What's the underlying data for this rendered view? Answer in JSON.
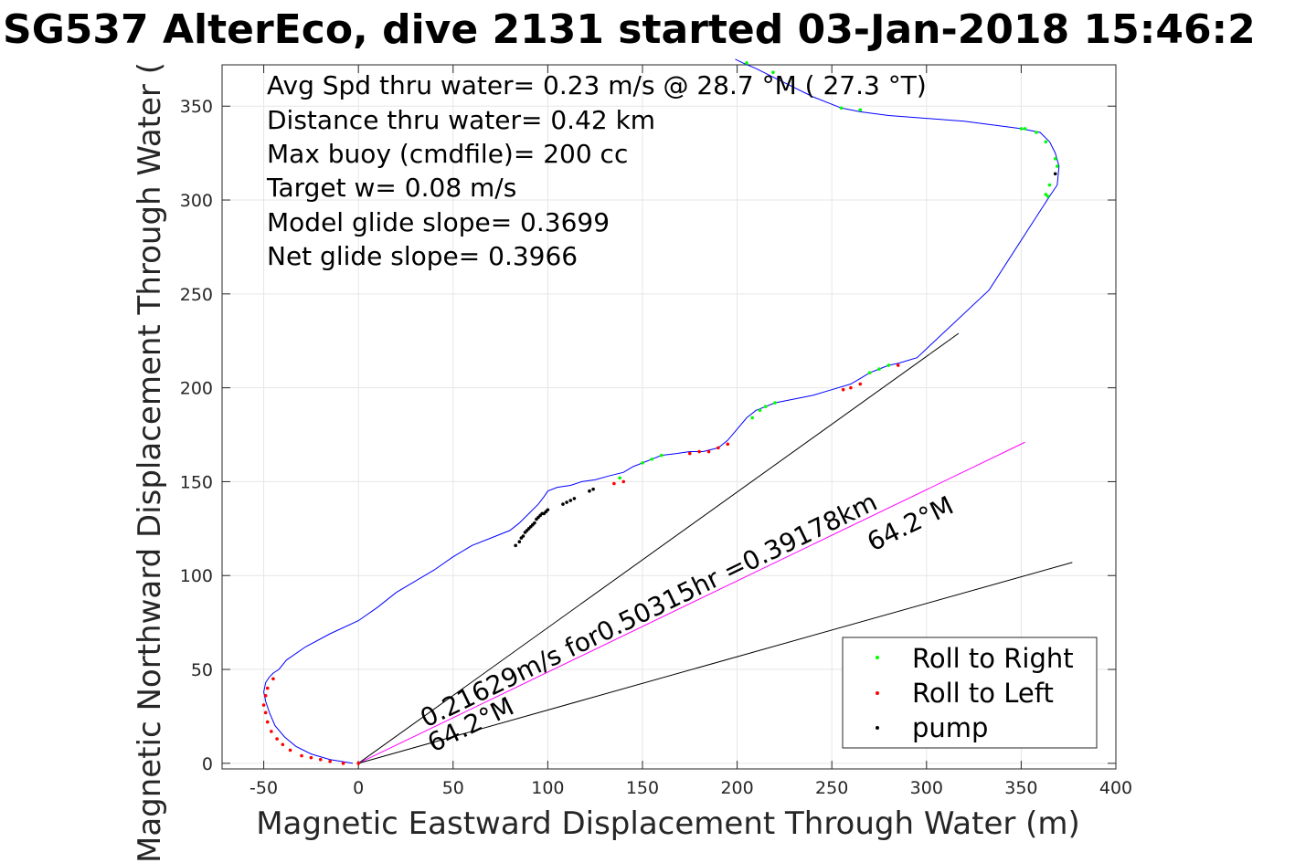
{
  "chart_data": {
    "type": "line",
    "title": "SG537 AlterEco, dive 2131 started 03-Jan-2018 15:46:2",
    "xlabel": "Magnetic Eastward Displacement Through Water (m)",
    "ylabel": "Magnetic Northward Displacement Through Water (",
    "xlim": [
      -72,
      400
    ],
    "ylim": [
      -3,
      372
    ],
    "xticks": [
      -50,
      0,
      50,
      100,
      150,
      200,
      250,
      300,
      350,
      400
    ],
    "yticks": [
      0,
      50,
      100,
      150,
      200,
      250,
      300,
      350
    ],
    "xtick_labels": [
      "-50",
      "0",
      "50",
      "100",
      "150",
      "200",
      "250",
      "300",
      "350",
      "400"
    ],
    "ytick_labels": [
      "0",
      "50",
      "100",
      "150",
      "200",
      "250",
      "300",
      "350"
    ],
    "grid": true,
    "legend_position": "bottom-right",
    "stats_lines": [
      "Avg Spd thru water=  0.23 m/s @  28.7 °M ( 27.3 °T)",
      "Distance thru water=  0.42 km",
      "Max buoy (cmdfile)= 200 cc",
      "Target w= 0.08 m/s",
      "Model glide slope= 0.3699",
      "Net glide slope= 0.3966"
    ],
    "annotations": [
      "0.21629m/s for0.50315hr =0.39178km",
      "64.2°M",
      "64.2°M"
    ],
    "track": {
      "name": "",
      "color": "#0000ff",
      "x": [
        -3,
        -15,
        -25,
        -33,
        -39,
        -44,
        -47,
        -49,
        -50,
        -49,
        -47,
        -45,
        -42,
        -38,
        -28,
        -15,
        0,
        10,
        20,
        30,
        40,
        50,
        60,
        70,
        80,
        85,
        90,
        95,
        98,
        100,
        105,
        112,
        118,
        125,
        132,
        140,
        145,
        150,
        155,
        160,
        168,
        175,
        182,
        190,
        195,
        200,
        205,
        210,
        215,
        220,
        230,
        240,
        250,
        260,
        265,
        270,
        275,
        280,
        285,
        295,
        333,
        365,
        369,
        370,
        368,
        365,
        360,
        350,
        320,
        280,
        265,
        255,
        240,
        220,
        210,
        203,
        199
      ],
      "y": [
        0,
        2,
        5,
        9,
        14,
        20,
        27,
        33,
        38,
        43,
        46,
        48,
        50,
        55,
        62,
        69,
        76,
        83,
        91,
        97,
        103,
        110,
        116,
        120,
        124,
        128,
        133,
        138,
        142,
        145,
        147,
        148,
        150,
        151,
        153,
        155,
        158,
        160,
        162,
        164,
        165,
        166,
        166,
        168,
        172,
        178,
        184,
        188,
        190,
        192,
        194,
        196,
        199,
        202,
        205,
        208,
        210,
        212,
        213,
        216,
        252,
        302,
        308,
        318,
        325,
        331,
        336,
        338,
        342,
        345,
        347,
        349,
        355,
        365,
        370,
        373,
        375
      ]
    },
    "model_lines": [
      {
        "x": [
          0,
          317
        ],
        "y": [
          0,
          229
        ],
        "color": "#000000"
      },
      {
        "x": [
          0,
          352
        ],
        "y": [
          0,
          171
        ],
        "color": "#ff00ff"
      },
      {
        "x": [
          0,
          377
        ],
        "y": [
          0,
          107
        ],
        "color": "#000000"
      }
    ],
    "roll_right": {
      "name": "Roll to Right",
      "color": "#00ff00",
      "x": [
        160,
        155,
        150,
        208,
        212,
        215,
        220,
        270,
        275,
        280,
        350,
        352,
        358,
        363,
        368,
        369,
        365,
        364,
        363,
        219,
        265,
        255,
        205,
        138
      ],
      "y": [
        164,
        162,
        160,
        184,
        188,
        190,
        192,
        208,
        210,
        212,
        338,
        338,
        336,
        331,
        322,
        318,
        308,
        302,
        303,
        368,
        348,
        349,
        373,
        152
      ]
    },
    "roll_left": {
      "name": "Roll to Left",
      "color": "#ff0000",
      "x": [
        -45,
        -48,
        -49,
        -50,
        -49,
        -48,
        -46,
        -43,
        -40,
        -36,
        -30,
        -25,
        -20,
        -15,
        -8,
        0,
        135,
        140,
        175,
        180,
        185,
        190,
        195,
        256,
        260,
        265,
        285
      ],
      "y": [
        45,
        40,
        36,
        31,
        27,
        22,
        17,
        13,
        10,
        7,
        4,
        3,
        2,
        1,
        0,
        0,
        149,
        150,
        165,
        166,
        166,
        168,
        170,
        199,
        200,
        202,
        212
      ]
    },
    "pump": {
      "name": "pump",
      "color": "#000000",
      "x": [
        83,
        85,
        86,
        87,
        88,
        89,
        90,
        91,
        92,
        93,
        94,
        95,
        96,
        97,
        98,
        99,
        100,
        108,
        110,
        112,
        114,
        122,
        124,
        368
      ],
      "y": [
        116,
        118,
        120,
        121,
        123,
        124,
        125,
        126,
        127,
        128,
        130,
        131,
        132,
        133,
        133,
        134,
        135,
        138,
        139,
        140,
        141,
        145,
        146,
        314
      ]
    }
  }
}
